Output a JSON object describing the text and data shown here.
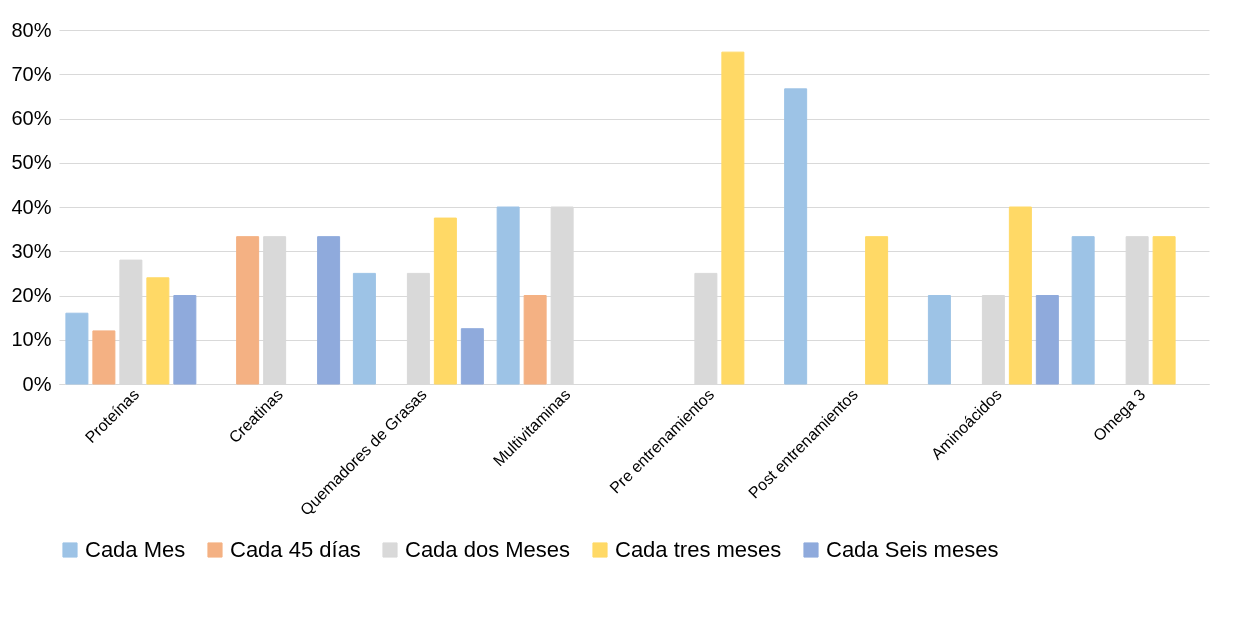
{
  "chart_data": {
    "type": "bar",
    "categories": [
      "Proteínas",
      "Creatinas",
      "Quemadores de Grasas",
      "Multivitaminas",
      "Pre entrenamientos",
      "Post entrenamientos",
      "Aminoácidos",
      "Omega 3"
    ],
    "series": [
      {
        "name": "Cada Mes",
        "color": "#9dc3e6",
        "values": [
          16,
          null,
          25,
          40,
          null,
          66.7,
          20,
          33.3
        ]
      },
      {
        "name": "Cada 45 días",
        "color": "#f4b183",
        "values": [
          12,
          33.3,
          null,
          20,
          null,
          null,
          null,
          null
        ]
      },
      {
        "name": "Cada dos Meses",
        "color": "#d9d9d9",
        "values": [
          28,
          33.3,
          25,
          40,
          25,
          null,
          20,
          33.3
        ]
      },
      {
        "name": "Cada tres meses",
        "color": "#ffd966",
        "values": [
          24,
          null,
          37.5,
          null,
          75,
          33.3,
          40,
          33.3
        ]
      },
      {
        "name": "Cada Seis meses",
        "color": "#8faadc",
        "values": [
          20,
          33.3,
          12.5,
          null,
          null,
          null,
          20,
          null
        ]
      }
    ],
    "ylim": [
      0,
      80
    ],
    "yticks": [
      {
        "value": 0,
        "label": "0%"
      },
      {
        "value": 10,
        "label": "10%"
      },
      {
        "value": 20,
        "label": "20%"
      },
      {
        "value": 30,
        "label": "30%"
      },
      {
        "value": 40,
        "label": "40%"
      },
      {
        "value": 50,
        "label": "50%"
      },
      {
        "value": 60,
        "label": "60%"
      },
      {
        "value": 70,
        "label": "70%"
      },
      {
        "value": 80,
        "label": "80%"
      }
    ],
    "grid": "y",
    "legend": "bottom"
  }
}
